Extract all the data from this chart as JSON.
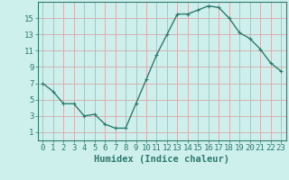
{
  "x": [
    0,
    1,
    2,
    3,
    4,
    5,
    6,
    7,
    8,
    9,
    10,
    11,
    12,
    13,
    14,
    15,
    16,
    17,
    18,
    19,
    20,
    21,
    22,
    23
  ],
  "y": [
    7,
    6,
    4.5,
    4.5,
    3,
    3.2,
    2,
    1.5,
    1.5,
    4.5,
    7.5,
    10.5,
    13,
    15.5,
    15.5,
    16,
    16.5,
    16.3,
    15,
    13.2,
    12.5,
    11.2,
    9.5,
    8.5
  ],
  "line_color": "#2d7a6e",
  "marker": "+",
  "marker_size": 3,
  "bg_color": "#cef0ec",
  "grid_color": "#d4a8a8",
  "xlabel": "Humidex (Indice chaleur)",
  "xlim": [
    -0.5,
    23.5
  ],
  "ylim": [
    0,
    17
  ],
  "xticks": [
    0,
    1,
    2,
    3,
    4,
    5,
    6,
    7,
    8,
    9,
    10,
    11,
    12,
    13,
    14,
    15,
    16,
    17,
    18,
    19,
    20,
    21,
    22,
    23
  ],
  "yticks": [
    1,
    3,
    5,
    7,
    9,
    11,
    13,
    15
  ],
  "tick_label_color": "#2d7a6e",
  "xlabel_color": "#2d7a6e",
  "xlabel_fontsize": 7.5,
  "tick_fontsize": 6.5,
  "linewidth": 1.0
}
